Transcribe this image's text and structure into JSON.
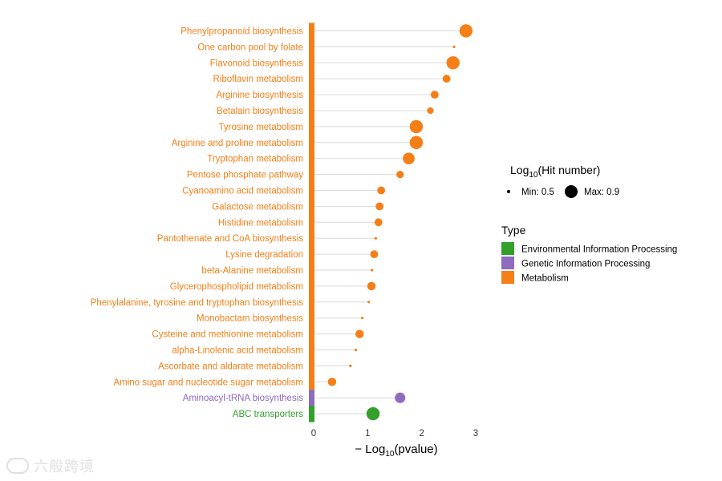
{
  "chart_data": {
    "type": "lollipop",
    "title": "",
    "xlabel_prefix": "− Log",
    "xlabel_sub": "10",
    "xlabel_suffix": "(pvalue)",
    "xlim": [
      0,
      3
    ],
    "xticks": [
      0,
      1,
      2,
      3
    ],
    "grid": false,
    "legend_placement": "right",
    "categories": [
      "Phenylpropanoid biosynthesis",
      "One carbon pool by folate",
      "Flavonoid biosynthesis",
      "Riboflavin metabolism",
      "Arginine biosynthesis",
      "Betalain biosynthesis",
      "Tyrosine metabolism",
      "Arginine and proline metabolism",
      "Tryptophan metabolism",
      "Pentose phosphate pathway",
      "Cyanoamino acid metabolism",
      "Galactose metabolism",
      "Histidine metabolism",
      "Pantothenate and CoA biosynthesis",
      "Lysine degradation",
      "beta-Alanine metabolism",
      "Glycerophospholipid metabolism",
      "Phenylalanine, tyrosine and tryptophan biosynthesis",
      "Monobactam biosynthesis",
      "Cysteine and methionine metabolism",
      "alpha-Linolenic acid metabolism",
      "Ascorbate and aldarate metabolism",
      "Amino sugar and nucleotide sugar metabolism",
      "Aminoacyl-tRNA biosynthesis",
      "ABC transporters"
    ],
    "values": [
      2.82,
      2.6,
      2.58,
      2.46,
      2.24,
      2.16,
      1.9,
      1.9,
      1.76,
      1.6,
      1.25,
      1.22,
      1.2,
      1.15,
      1.12,
      1.08,
      1.07,
      1.02,
      0.9,
      0.85,
      0.78,
      0.68,
      0.34,
      1.6,
      1.1
    ],
    "hit_number_log10": [
      0.9,
      0.5,
      0.9,
      0.7,
      0.7,
      0.65,
      0.9,
      0.9,
      0.85,
      0.68,
      0.7,
      0.7,
      0.7,
      0.5,
      0.7,
      0.5,
      0.72,
      0.5,
      0.5,
      0.72,
      0.5,
      0.5,
      0.72,
      0.8,
      0.9
    ],
    "types": [
      "Metabolism",
      "Metabolism",
      "Metabolism",
      "Metabolism",
      "Metabolism",
      "Metabolism",
      "Metabolism",
      "Metabolism",
      "Metabolism",
      "Metabolism",
      "Metabolism",
      "Metabolism",
      "Metabolism",
      "Metabolism",
      "Metabolism",
      "Metabolism",
      "Metabolism",
      "Metabolism",
      "Metabolism",
      "Metabolism",
      "Metabolism",
      "Metabolism",
      "Metabolism",
      "Genetic Information Processing",
      "Environmental Information Processing"
    ],
    "size_legend": {
      "title_prefix": "Log",
      "title_sub": "10",
      "title_suffix": "(Hit number)",
      "min_label": "Min: 0.5",
      "max_label": "Max: 0.9",
      "min_value": 0.5,
      "max_value": 0.9
    },
    "type_legend": {
      "title": "Type",
      "entries": [
        {
          "name": "Environmental Information Processing",
          "color": "#33a02c"
        },
        {
          "name": "Genetic Information Processing",
          "color": "#8e6bbf"
        },
        {
          "name": "Metabolism",
          "color": "#f57f17"
        }
      ]
    }
  },
  "watermark": {
    "text": "六般跨境"
  }
}
